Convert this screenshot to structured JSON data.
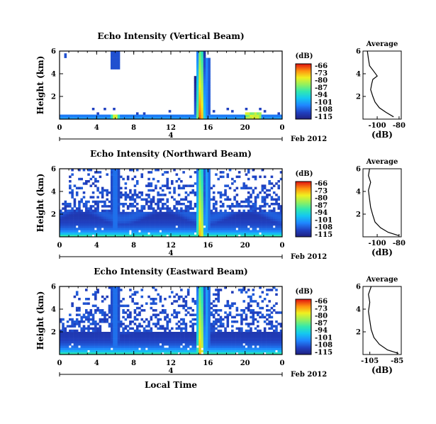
{
  "chart_data": [
    {
      "type": "heatmap",
      "title": "Echo Intensity (Vertical Beam)",
      "ylabel": "Height (km)",
      "yticks": [
        "2",
        "4",
        "6"
      ],
      "ylim": [
        0,
        6
      ],
      "xticks": [
        "0",
        "4",
        "8",
        "12",
        "16",
        "20",
        "0"
      ],
      "xlim": [
        0,
        24
      ],
      "date_label": "Feb 2012",
      "date_tick": "4",
      "colorbar": {
        "unit": "(dB)",
        "labels": [
          "-66",
          "-73",
          "-80",
          "-87",
          "-94",
          "-101",
          "-108",
          "-115"
        ]
      },
      "profile": {
        "title": "Average",
        "xlabel": "(dB)",
        "xticks": [
          "-100",
          "-80"
        ],
        "yticks": [
          "2",
          "4",
          "6"
        ],
        "xlim": [
          -113,
          -78
        ],
        "points": [
          [
            -85,
            0.2
          ],
          [
            -92,
            0.6
          ],
          [
            -98,
            1.0
          ],
          [
            -102,
            1.5
          ],
          [
            -104,
            2.0
          ],
          [
            -106,
            2.6
          ],
          [
            -105,
            3.1
          ],
          [
            -104,
            3.5
          ],
          [
            -100,
            3.8
          ],
          [
            -103,
            4.2
          ],
          [
            -107,
            4.7
          ],
          [
            -108,
            5.3
          ],
          [
            -109,
            6.0
          ]
        ]
      }
    },
    {
      "type": "heatmap",
      "title": "Echo Intensity (Northward Beam)",
      "ylabel": "Height (km)",
      "yticks": [
        "2",
        "4",
        "6"
      ],
      "ylim": [
        0,
        6
      ],
      "xticks": [
        "0",
        "4",
        "8",
        "12",
        "16",
        "20",
        "0"
      ],
      "xlim": [
        0,
        24
      ],
      "date_label": "Feb 2012",
      "date_tick": "4",
      "colorbar": {
        "unit": "(dB)",
        "labels": [
          "-66",
          "-73",
          "-80",
          "-87",
          "-94",
          "-101",
          "-108",
          "-115"
        ]
      },
      "profile": {
        "title": "Average",
        "xlabel": "(dB)",
        "xticks": [
          "-100",
          "-80"
        ],
        "yticks": [
          "2",
          "4",
          "6"
        ],
        "xlim": [
          -113,
          -78
        ],
        "points": [
          [
            -80,
            0.1
          ],
          [
            -90,
            0.4
          ],
          [
            -97,
            0.8
          ],
          [
            -102,
            1.3
          ],
          [
            -104,
            1.9
          ],
          [
            -106,
            2.6
          ],
          [
            -107,
            3.3
          ],
          [
            -108,
            4.1
          ],
          [
            -106,
            4.8
          ],
          [
            -108,
            5.4
          ],
          [
            -107,
            6.0
          ]
        ]
      }
    },
    {
      "type": "heatmap",
      "title": "Echo Intensity (Eastward Beam)",
      "ylabel": "Height (km)",
      "yticks": [
        "2",
        "4",
        "6"
      ],
      "ylim": [
        0,
        6
      ],
      "xticks": [
        "0",
        "4",
        "8",
        "12",
        "16",
        "20",
        "0"
      ],
      "xlim": [
        0,
        24
      ],
      "xlabel": "Local Time",
      "date_label": "Feb 2012",
      "date_tick": "4",
      "colorbar": {
        "unit": "(dB)",
        "labels": [
          "-66",
          "-73",
          "-80",
          "-87",
          "-94",
          "-101",
          "-108",
          "-115"
        ]
      },
      "profile": {
        "title": "Average",
        "xlabel": "(dB)",
        "xticks": [
          "-105",
          "-85"
        ],
        "yticks": [
          "2",
          "4",
          "6"
        ],
        "xlim": [
          -110,
          -82
        ],
        "points": [
          [
            -84,
            0.1
          ],
          [
            -92,
            0.4
          ],
          [
            -98,
            0.9
          ],
          [
            -102,
            1.5
          ],
          [
            -104,
            2.2
          ],
          [
            -105,
            3.0
          ],
          [
            -106,
            3.8
          ],
          [
            -105,
            4.6
          ],
          [
            -106,
            5.3
          ],
          [
            -104,
            6.0
          ]
        ]
      }
    }
  ]
}
